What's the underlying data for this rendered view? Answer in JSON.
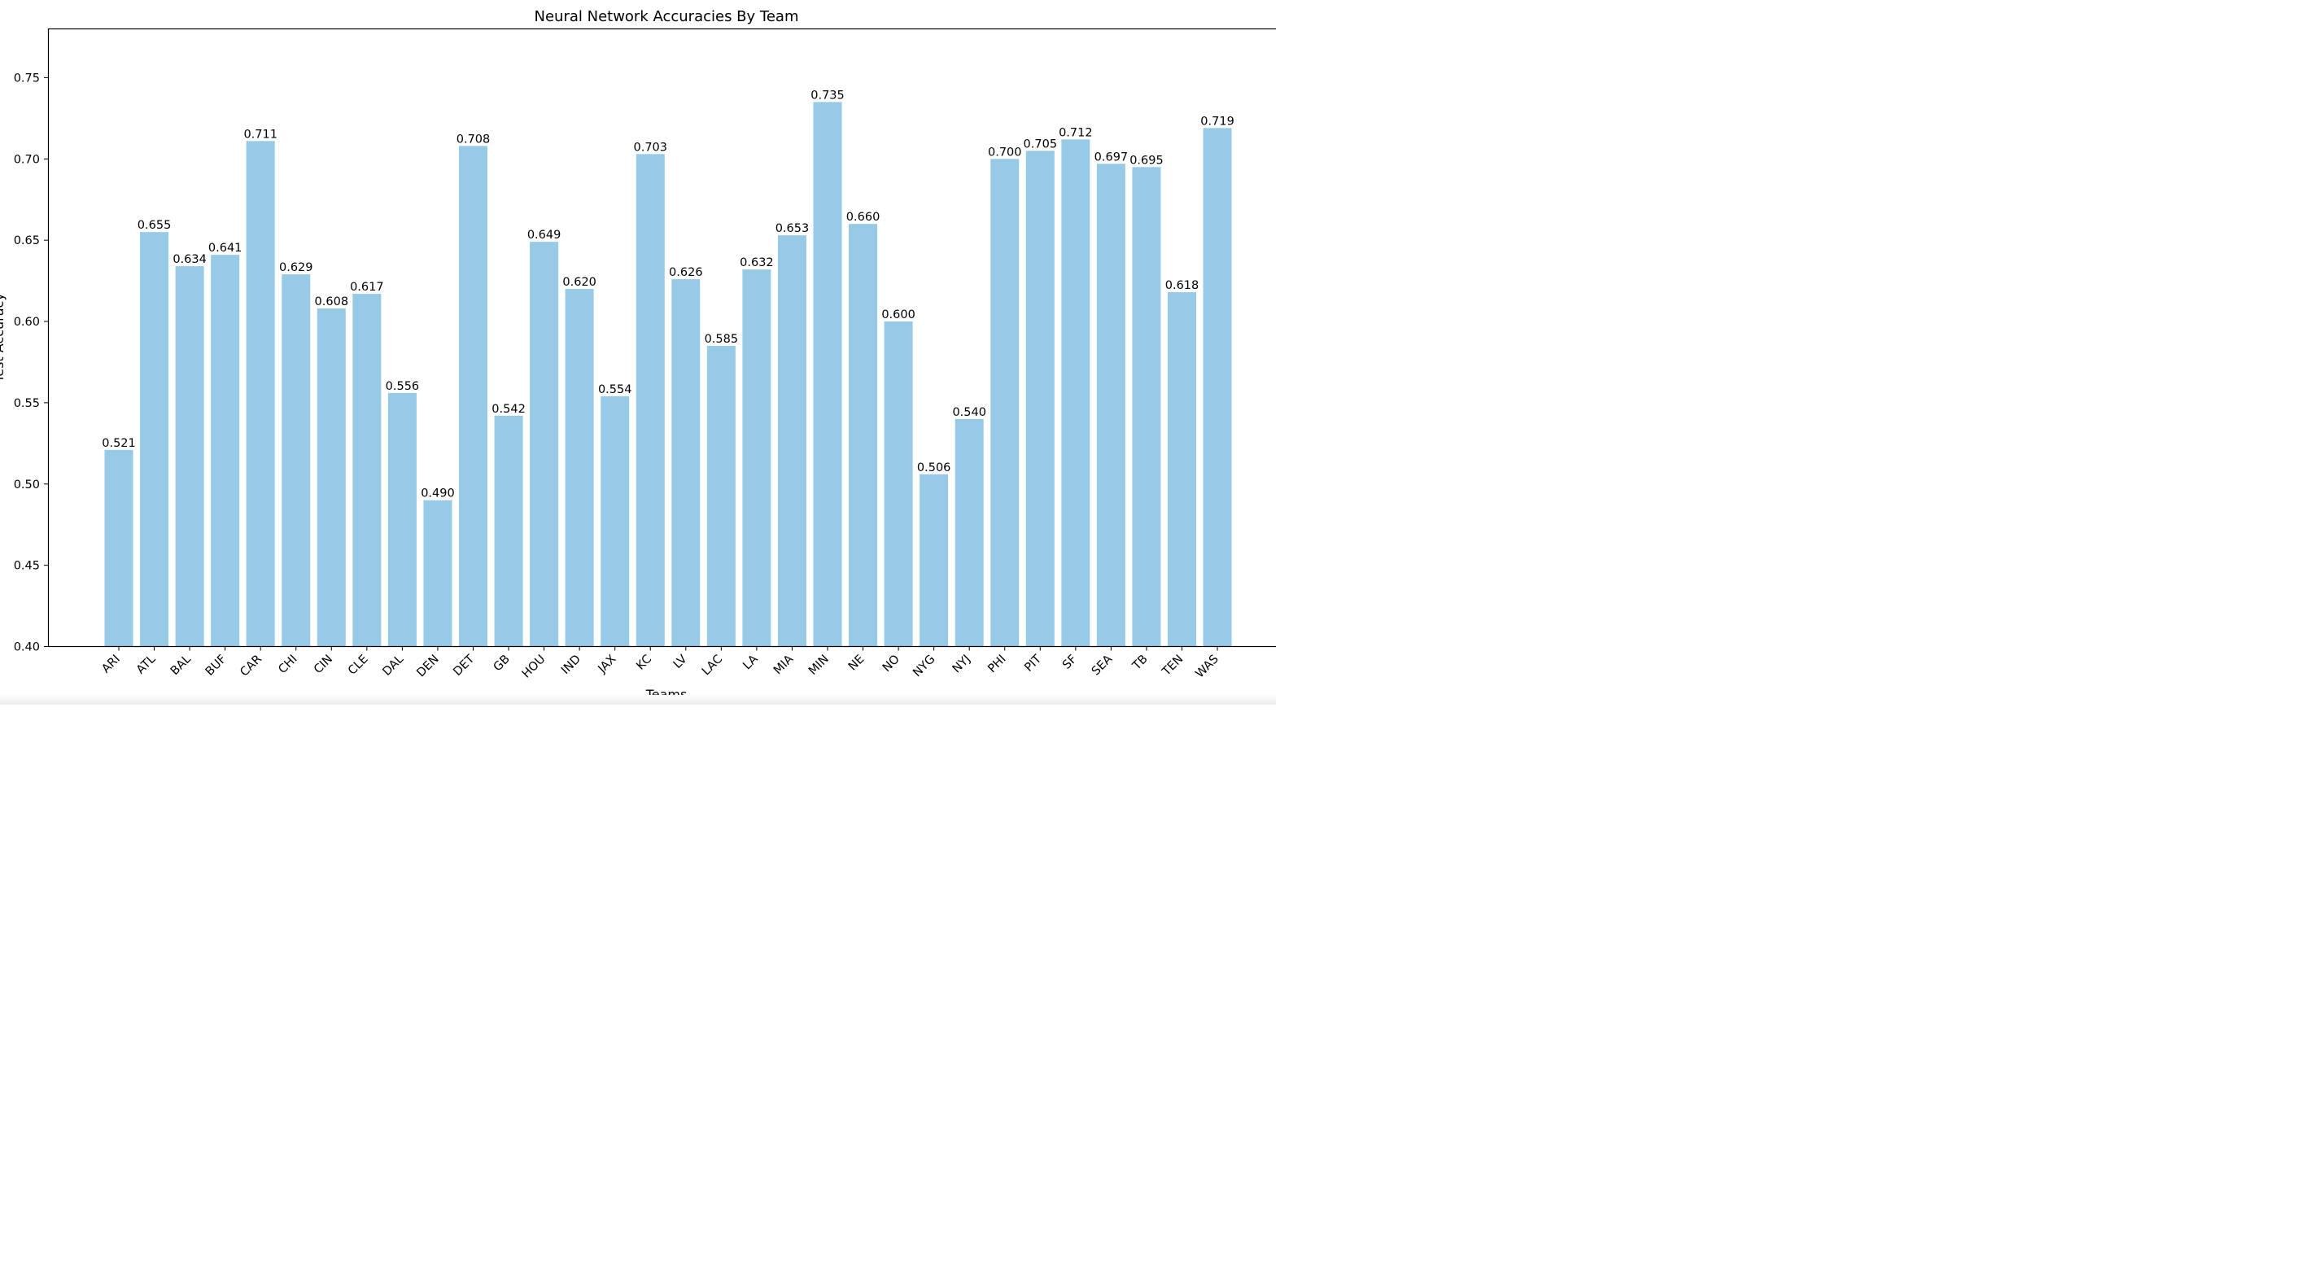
{
  "chart_data": {
    "type": "bar",
    "title": "Neural Network Accuracies By Team",
    "xlabel": "Teams",
    "ylabel": "Test Accuracy",
    "ylim": [
      0.4,
      0.78
    ],
    "yticks": [
      "0.40",
      "0.45",
      "0.50",
      "0.55",
      "0.60",
      "0.65",
      "0.70",
      "0.75"
    ],
    "grid": false,
    "legend": "none",
    "bar_color": "#97cae7",
    "categories": [
      "ARI",
      "ATL",
      "BAL",
      "BUF",
      "CAR",
      "CHI",
      "CIN",
      "CLE",
      "DAL",
      "DEN",
      "DET",
      "GB",
      "HOU",
      "IND",
      "JAX",
      "KC",
      "LV",
      "LAC",
      "LA",
      "MIA",
      "MIN",
      "NE",
      "NO",
      "NYG",
      "NYJ",
      "PHI",
      "PIT",
      "SF",
      "SEA",
      "TB",
      "TEN",
      "WAS"
    ],
    "values": [
      0.521,
      0.655,
      0.634,
      0.641,
      0.711,
      0.629,
      0.608,
      0.617,
      0.556,
      0.49,
      0.708,
      0.542,
      0.649,
      0.62,
      0.554,
      0.703,
      0.626,
      0.585,
      0.632,
      0.653,
      0.735,
      0.66,
      0.6,
      0.506,
      0.54,
      0.7,
      0.705,
      0.712,
      0.697,
      0.695,
      0.618,
      0.719
    ],
    "value_labels": [
      "0.521",
      "0.655",
      "0.634",
      "0.641",
      "0.711",
      "0.629",
      "0.608",
      "0.617",
      "0.556",
      "0.490",
      "0.708",
      "0.542",
      "0.649",
      "0.620",
      "0.554",
      "0.703",
      "0.626",
      "0.585",
      "0.632",
      "0.653",
      "0.735",
      "0.660",
      "0.600",
      "0.506",
      "0.540",
      "0.700",
      "0.705",
      "0.712",
      "0.697",
      "0.695",
      "0.618",
      "0.719"
    ]
  }
}
